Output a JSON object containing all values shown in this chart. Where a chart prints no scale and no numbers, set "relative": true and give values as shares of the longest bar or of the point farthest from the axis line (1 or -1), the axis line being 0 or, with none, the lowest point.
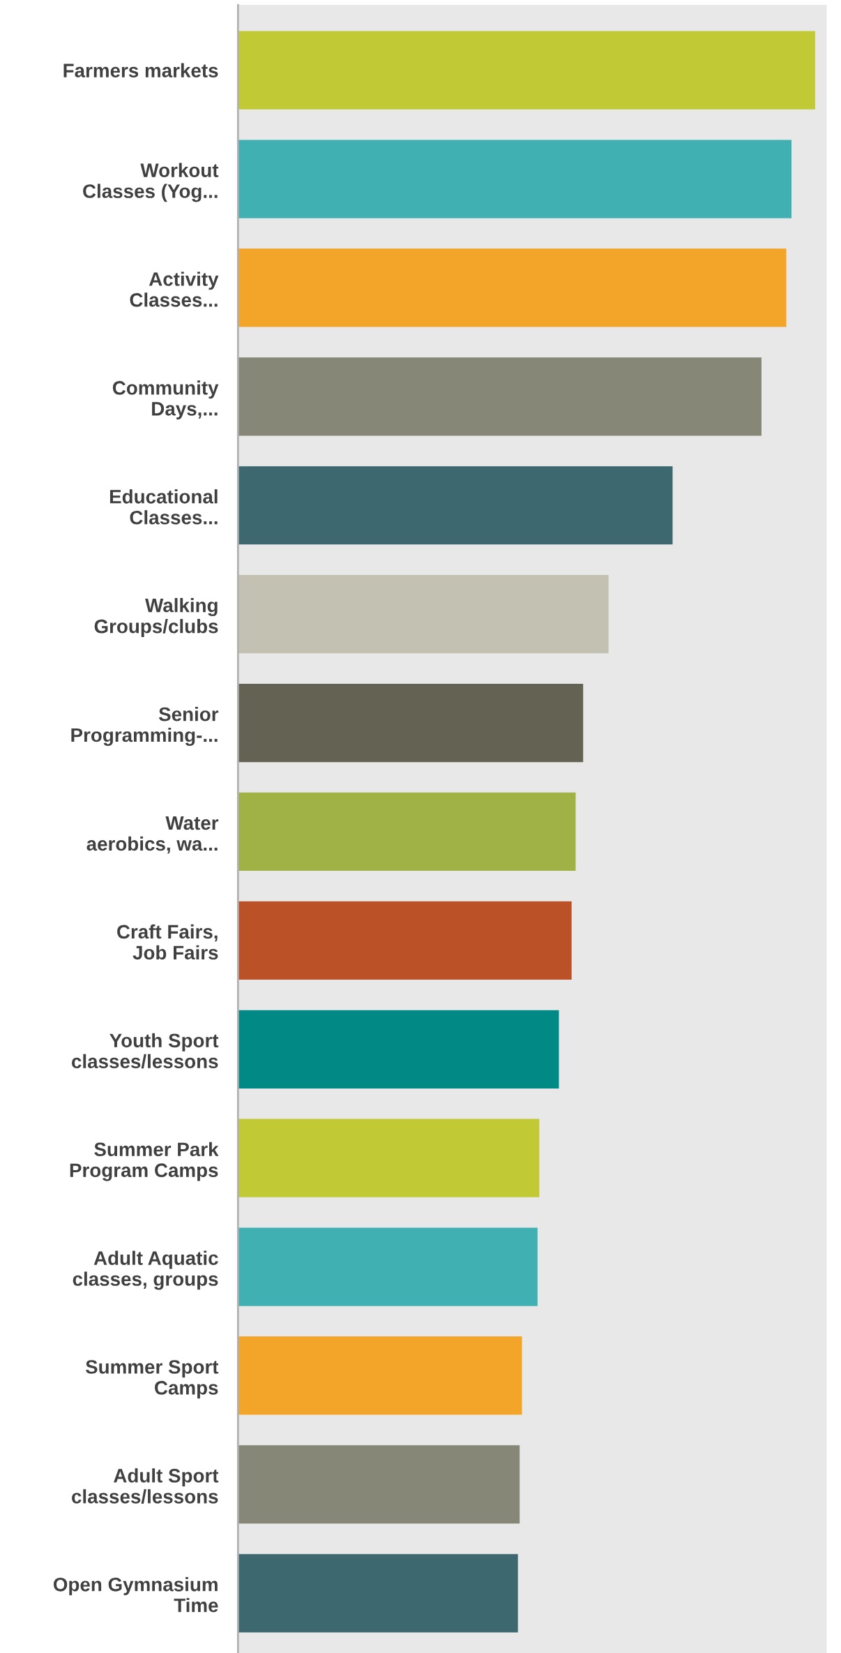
{
  "chart_data": {
    "type": "bar",
    "orientation": "horizontal",
    "relative": true,
    "categories": [
      "Farmers markets",
      "Workout\nClasses (Yog...",
      "Activity\nClasses...",
      "Community\nDays,...",
      "Educational\nClasses...",
      "Walking\nGroups/clubs",
      "Senior\nProgramming-...",
      "Water\naerobics, wa...",
      "Craft Fairs,\nJob Fairs",
      "Youth Sport\nclasses/lessons",
      "Summer Park\nProgram Camps",
      "Adult Aquatic\nclasses, groups",
      "Summer Sport\nCamps",
      "Adult Sport\nclasses/lessons",
      "Open Gymnasium\nTime"
    ],
    "values": [
      1,
      0.959,
      0.95,
      0.907,
      0.753,
      0.642,
      0.598,
      0.585,
      0.578,
      0.556,
      0.522,
      0.519,
      0.492,
      0.488,
      0.485
    ],
    "colors": [
      "#c1c935",
      "#41b0b3",
      "#f3a52a",
      "#878778",
      "#3d6870",
      "#c2c1b2",
      "#646253",
      "#a0b146",
      "#bb5126",
      "#018985",
      "#c1c935",
      "#41b0b3",
      "#f3a52a",
      "#878778",
      "#3d6870"
    ]
  }
}
